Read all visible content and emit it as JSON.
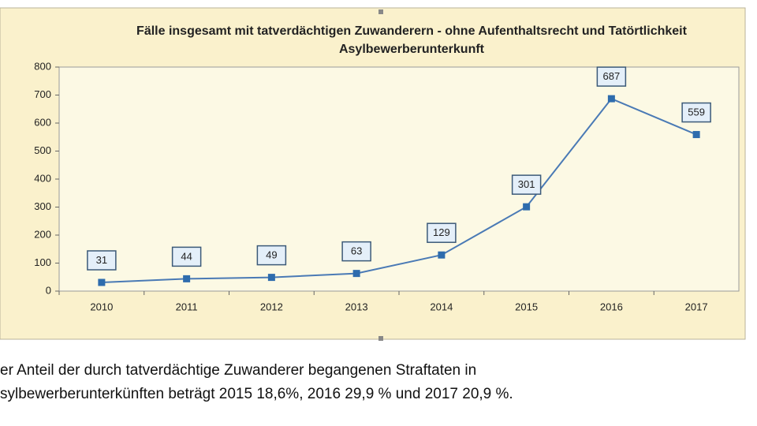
{
  "chart_data": {
    "type": "line",
    "title": "Fälle insgesamt mit tatverdächtigen Zuwanderern - ohne Aufenthaltsrecht und Tatörtlichkeit Asylbewerberunterkunft",
    "categories": [
      "2010",
      "2011",
      "2012",
      "2013",
      "2014",
      "2015",
      "2016",
      "2017"
    ],
    "values": [
      31,
      44,
      49,
      63,
      129,
      301,
      687,
      559
    ],
    "color": "#4a7ab5",
    "ylim": [
      0,
      800
    ],
    "yticks": [
      0,
      100,
      200,
      300,
      400,
      500,
      600,
      700,
      800
    ],
    "grid": false
  },
  "caption": {
    "lines": [
      "er Anteil der durch tatverdächtige Zuwanderer begangenen Straftaten in",
      "sylbewerberunterkünften beträgt 2015 18,6%, 2016 29,9 % und 2017 20,9 %."
    ]
  }
}
